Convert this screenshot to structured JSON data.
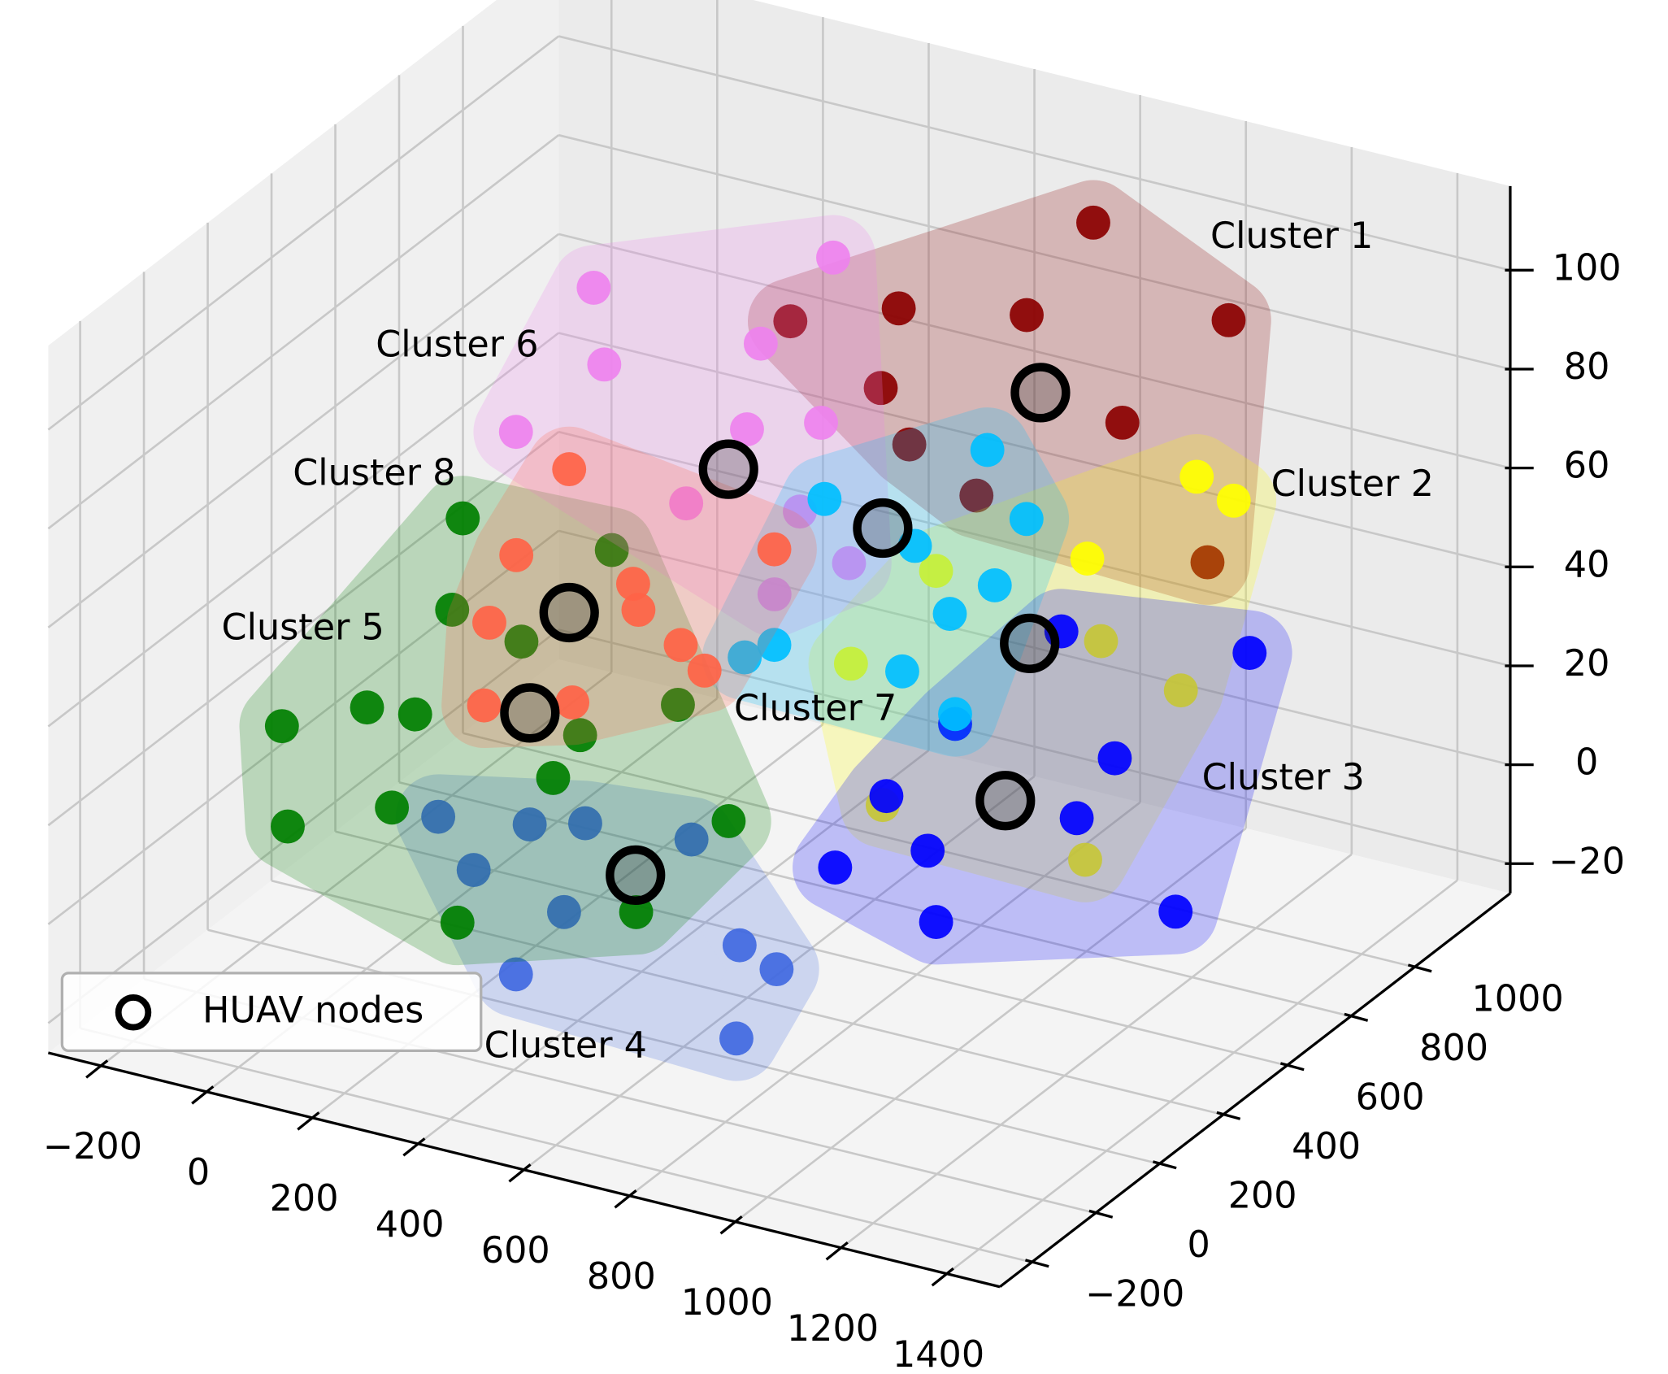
{
  "chart_data": {
    "type": "scatter3d",
    "xlim": [
      -300,
      1500
    ],
    "ylim": [
      -300,
      1300
    ],
    "zlim": [
      -26,
      117
    ],
    "xticks": [
      {
        "value": -200,
        "label": "−200"
      },
      0,
      200,
      400,
      600,
      800,
      1000,
      1200,
      1400
    ],
    "yticks": [
      {
        "value": -200,
        "label": "−200"
      },
      0,
      200,
      400,
      600,
      800,
      1000
    ],
    "zticks": [
      {
        "value": -20,
        "label": "−20"
      },
      0,
      20,
      40,
      60,
      80,
      100
    ],
    "grid": true,
    "legend": "lower left",
    "annotations": [
      "Cluster 1",
      "Cluster 2",
      "Cluster 3",
      "Cluster 4",
      "Cluster 5",
      "Cluster 6",
      "Cluster 7",
      "Cluster 8"
    ],
    "series": [
      {
        "color": "#8b0000",
        "x": [
          832,
          706,
          464,
          259,
          1088,
          430,
          887,
          611,
          1048,
          484
        ],
        "y": [
          1100,
          1100,
          1100,
          1100,
          1100,
          1100,
          1100,
          1100,
          1100,
          1100
        ],
        "z": [
          102,
          80,
          75,
          67,
          89,
          58,
          63,
          41,
          39,
          48
        ]
      },
      {
        "color": "#ffff00",
        "x": [
          1269,
          1339,
          1062,
          1088,
          1239,
          1058,
          615,
          776,
          675
        ],
        "y": [
          700,
          700,
          700,
          700,
          700,
          700,
          700,
          700,
          700
        ],
        "z": [
          82,
          79,
          60,
          44,
          38,
          -1,
          27,
          50,
          0
        ]
      },
      {
        "color": "#0000ff",
        "x": [
          1369,
          1013,
          1114,
          1229,
          760,
          776,
          585,
          1042,
          812,
          682
        ],
        "y": [
          700,
          700,
          700,
          700,
          700,
          700,
          700,
          700,
          700,
          700
        ],
        "z": [
          49,
          44,
          21,
          -7,
          -7,
          -21,
          -15,
          7,
          20,
          2
        ]
      },
      {
        "color": "#4169e1",
        "x": [
          317,
          384,
          490,
          595,
          555,
          464,
          887,
          957,
          881,
          796
        ],
        "y": [
          -100,
          -100,
          -100,
          -100,
          -100,
          -100,
          -100,
          -100,
          -100,
          -100
        ],
        "z": [
          28,
          19,
          31,
          34,
          15,
          0,
          17,
          14,
          -2,
          36
        ]
      },
      {
        "color": "#007f00",
        "x": [
          303,
          585,
          283,
          -39,
          122,
          213,
          414,
          525,
          -28,
          169,
          474,
          710,
          806,
          293,
          631
        ],
        "y": [
          0,
          0,
          0,
          0,
          0,
          0,
          0,
          0,
          0,
          0,
          0,
          0,
          0,
          0,
          0
        ],
        "z": [
          83,
          84,
          64,
          32,
          40,
          41,
          61,
          45,
          12,
          21,
          35,
          56,
          35,
          1,
          12
        ]
      },
      {
        "color": "#ee82ee",
        "x": [
          340,
          -113,
          -93,
          -260,
          203,
          177,
          317,
          62,
          277,
          229,
          370
        ],
        "y": [
          1100,
          1100,
          1100,
          1100,
          1100,
          1100,
          1100,
          1100,
          1100,
          1100,
          1100
        ],
        "z": [
          82,
          64,
          49,
          31,
          61,
          43,
          48,
          25,
          29,
          11,
          21
        ]
      },
      {
        "color": "#00bfff",
        "x": [
          565,
          736,
          873,
          947,
          887,
          802,
          712,
          812,
          470,
          414
        ],
        "y": [
          700,
          700,
          700,
          700,
          700,
          700,
          700,
          700,
          700,
          700
        ],
        "z": [
          59,
          54,
          77,
          65,
          50,
          42,
          28,
          22,
          27,
          23
        ]
      },
      {
        "color": "#ff6347",
        "x": [
          263,
          163,
          112,
          384,
          394,
          474,
          519,
          102,
          269,
          651
        ],
        "y": [
          400,
          400,
          400,
          400,
          400,
          400,
          400,
          400,
          400,
          400
        ],
        "z": [
          72,
          52,
          37,
          52,
          47,
          42,
          38,
          20,
          25,
          66
        ]
      },
      {
        "name": "HUAV nodes",
        "color": "#000000",
        "marker": "ring",
        "x": [
          732,
          953,
          907,
          690,
          430,
          142,
          675,
          263
        ],
        "y": [
          1100,
          700,
          700,
          -100,
          0,
          1100,
          700,
          400
        ],
        "z": [
          65,
          40,
          7,
          26,
          47,
          34,
          56,
          43
        ]
      }
    ]
  }
}
